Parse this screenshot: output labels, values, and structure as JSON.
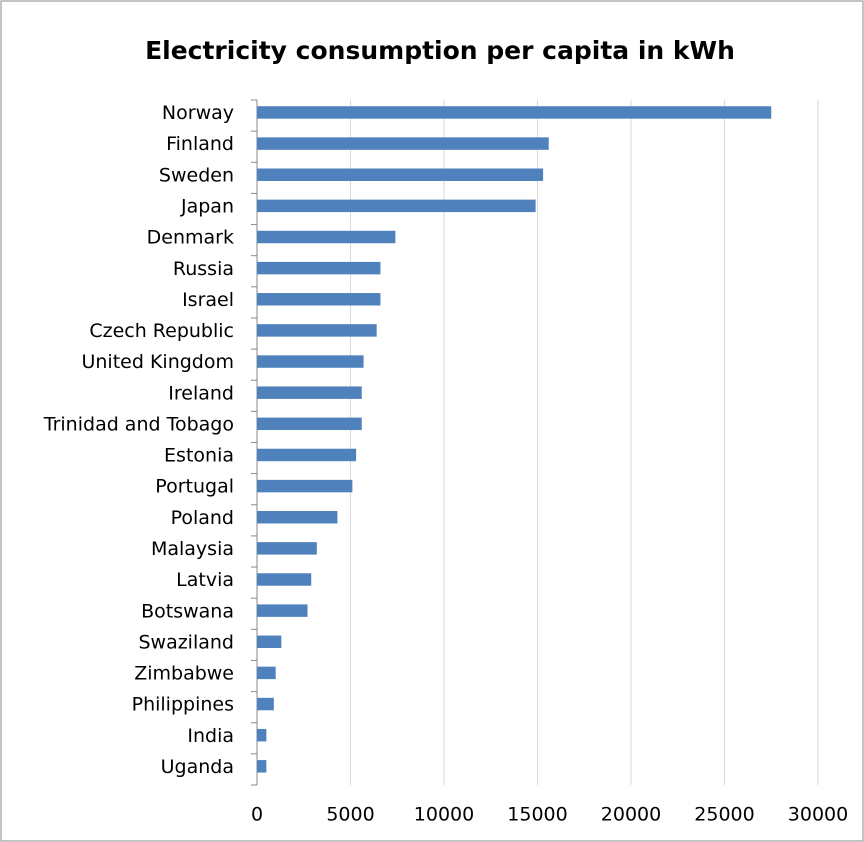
{
  "chart_data": {
    "type": "barh",
    "title": "Electricity consumption per capita in kWh",
    "categories": [
      "Norway",
      "Finland",
      "Sweden",
      "Japan",
      "Denmark",
      "Russia",
      "Israel",
      "Czech Republic",
      "United Kingdom",
      "Ireland",
      "Trinidad and Tobago",
      "Estonia",
      "Portugal",
      "Poland",
      "Malaysia",
      "Latvia",
      "Botswana",
      "Swaziland",
      "Zimbabwe",
      "Philippines",
      "India",
      "Uganda"
    ],
    "values": [
      27500,
      15600,
      15300,
      14900,
      7400,
      6600,
      6600,
      6400,
      5700,
      5600,
      5600,
      5300,
      5100,
      4300,
      3200,
      2900,
      2700,
      1300,
      1000,
      900,
      500,
      500
    ],
    "color": "#4f81bd",
    "xlim": [
      0,
      30000
    ],
    "xticks": [
      0,
      5000,
      10000,
      15000,
      20000,
      25000,
      30000
    ],
    "grid": true
  }
}
